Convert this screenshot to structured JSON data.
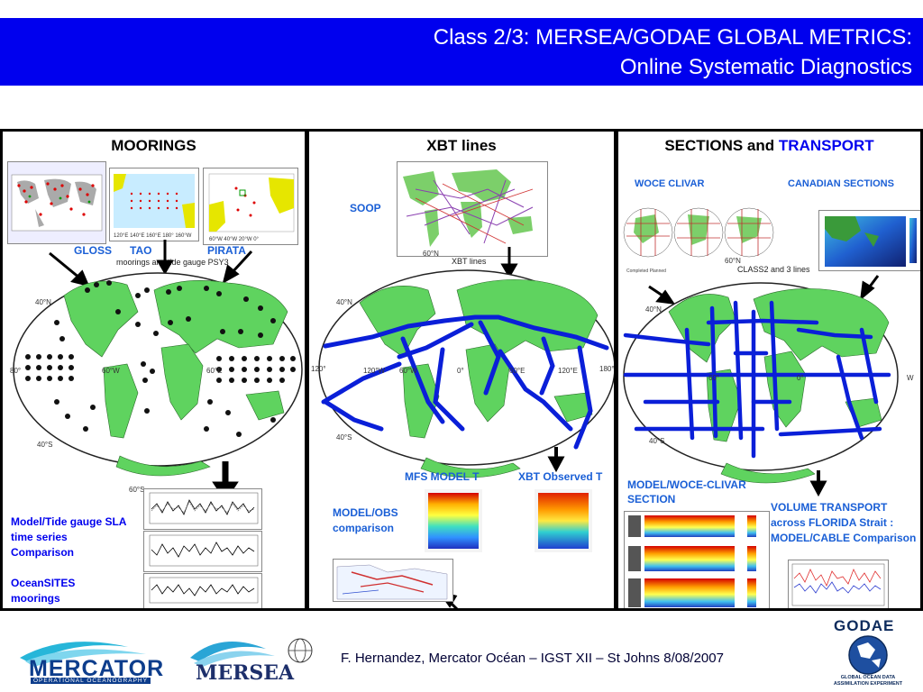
{
  "header": {
    "title_line1": "Class 2/3: MERSEA/GODAE GLOBAL METRICS:",
    "title_line2": "Online Systematic Diagnostics"
  },
  "moorings": {
    "title": "MOORINGS",
    "labels": {
      "gloss": "GLOSS",
      "tao": "TAO",
      "pirata": "PIRATA"
    },
    "map_caption": "moorings and tide gauge PSY3",
    "bottom_label1": "Model/Tide gauge SLA time series Comparison",
    "bottom_label2": "OceanSITES moorings"
  },
  "xbt": {
    "title": "XBT lines",
    "soop_label": "SOOP",
    "map_caption": "XBT lines",
    "mfs_label": "MFS MODEL T",
    "xbt_observed_label": "XBT Observed T",
    "model_obs_label": "MODEL/OBS comparison"
  },
  "sections": {
    "title_part1": "SECTIONS and",
    "title_part2": "TRANSPORT",
    "woce_label": "WOCE CLIVAR",
    "canadian_label": "CANADIAN SECTIONS",
    "map_caption": "CLASS2 and 3 lines",
    "model_woce_label": "MODEL/WOCE-CLIVAR SECTION",
    "volume_label": "VOLUME TRANSPORT across FLORIDA Strait : MODEL/CABLE Comparison"
  },
  "footer": {
    "text": "F. Hernandez, Mercator Océan – IGST XII – St Johns 8/08/2007",
    "mercator_name": "MERCATOR",
    "mercator_tagline": "OPERATIONAL OCEANOGRAPHY",
    "mersea_name": "MERSEA",
    "godae_name": "GODAE",
    "godae_tagline": "GLOBAL OCEAN DATA ASSIMILATION EXPERIMENT"
  },
  "colors": {
    "header_bg": "#0000ee",
    "accent_blue": "#0000ee",
    "label_blue": "#1a5fd6",
    "land_green": "#5fd35f",
    "ocean": "#ffffff",
    "track_blue": "#0a1fd8"
  },
  "icons": [
    "arrow-icon",
    "globe-map-icon",
    "time-series-plot-icon",
    "section-plot-icon",
    "mercator-logo",
    "mersea-logo",
    "godae-logo"
  ]
}
